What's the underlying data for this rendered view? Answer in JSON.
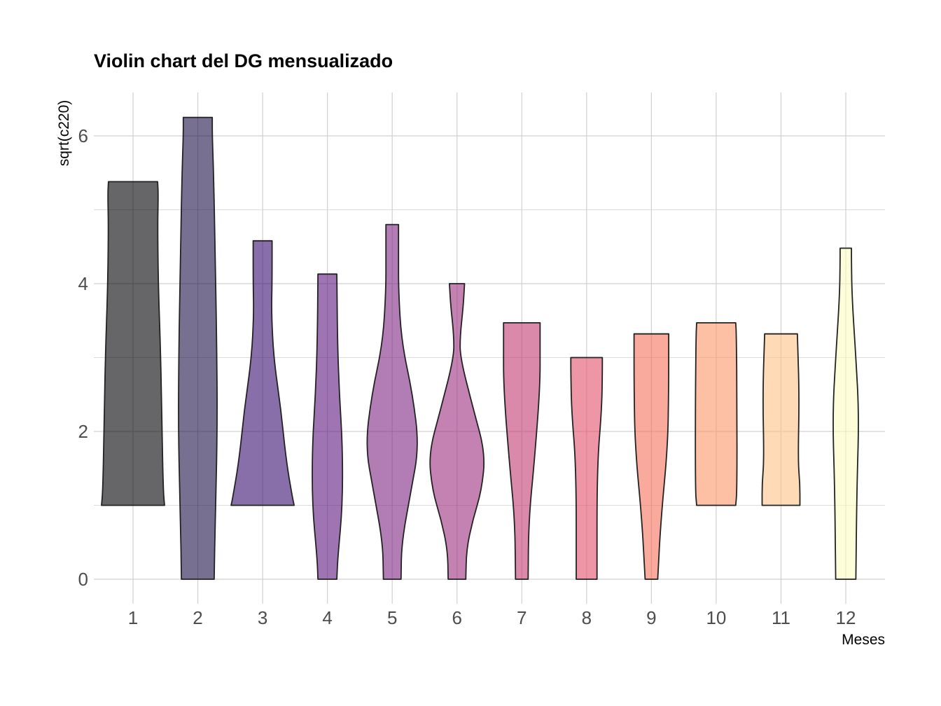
{
  "chart_data": {
    "type": "violin",
    "title": "Violin chart del DG mensualizado",
    "xlabel": "Meses",
    "ylabel": "sqrt(c220)",
    "ylim": [
      -0.35,
      6.55
    ],
    "yticks": [
      0,
      2,
      4,
      6
    ],
    "grid": true,
    "categories": [
      "1",
      "2",
      "3",
      "4",
      "5",
      "6",
      "7",
      "8",
      "9",
      "10",
      "11",
      "12"
    ],
    "series": [
      {
        "category": "1",
        "min": 1.0,
        "max": 5.38,
        "color": "#000004",
        "profile": [
          [
            1.0,
            1.0
          ],
          [
            1.2,
            0.96
          ],
          [
            2.0,
            0.92
          ],
          [
            3.0,
            0.88
          ],
          [
            4.0,
            0.8
          ],
          [
            4.8,
            0.78
          ],
          [
            5.2,
            0.8
          ],
          [
            5.38,
            0.78
          ]
        ]
      },
      {
        "category": "2",
        "min": 0.0,
        "max": 6.25,
        "color": "#1d1147",
        "profile": [
          [
            0.0,
            0.52
          ],
          [
            0.8,
            0.55
          ],
          [
            2.0,
            0.62
          ],
          [
            3.2,
            0.6
          ],
          [
            4.4,
            0.55
          ],
          [
            5.5,
            0.5
          ],
          [
            6.0,
            0.46
          ],
          [
            6.25,
            0.46
          ]
        ]
      },
      {
        "category": "3",
        "min": 1.0,
        "max": 4.58,
        "color": "#3b0f70",
        "profile": [
          [
            1.0,
            1.0
          ],
          [
            1.1,
            0.95
          ],
          [
            1.6,
            0.75
          ],
          [
            2.3,
            0.58
          ],
          [
            3.0,
            0.35
          ],
          [
            3.6,
            0.28
          ],
          [
            4.0,
            0.3
          ],
          [
            4.58,
            0.3
          ]
        ]
      },
      {
        "category": "4",
        "min": 0.0,
        "max": 4.13,
        "color": "#5f187f",
        "profile": [
          [
            0.0,
            0.3
          ],
          [
            0.3,
            0.33
          ],
          [
            1.0,
            0.48
          ],
          [
            1.8,
            0.48
          ],
          [
            2.5,
            0.38
          ],
          [
            3.2,
            0.32
          ],
          [
            4.13,
            0.3
          ]
        ]
      },
      {
        "category": "5",
        "min": 0.0,
        "max": 4.8,
        "color": "#7e2482",
        "profile": [
          [
            0.0,
            0.28
          ],
          [
            0.5,
            0.3
          ],
          [
            1.2,
            0.6
          ],
          [
            1.8,
            0.85
          ],
          [
            2.5,
            0.65
          ],
          [
            3.2,
            0.3
          ],
          [
            3.9,
            0.2
          ],
          [
            4.4,
            0.2
          ],
          [
            4.8,
            0.2
          ]
        ]
      },
      {
        "category": "6",
        "min": 0.0,
        "max": 4.0,
        "color": "#9c2e7f",
        "profile": [
          [
            0.0,
            0.28
          ],
          [
            0.4,
            0.3
          ],
          [
            0.8,
            0.5
          ],
          [
            1.2,
            0.78
          ],
          [
            1.7,
            0.9
          ],
          [
            2.3,
            0.52
          ],
          [
            3.0,
            0.1
          ],
          [
            3.3,
            0.1
          ],
          [
            3.7,
            0.2
          ],
          [
            4.0,
            0.24
          ]
        ]
      },
      {
        "category": "7",
        "min": 0.0,
        "max": 3.47,
        "color": "#c13a73",
        "profile": [
          [
            0.0,
            0.2
          ],
          [
            0.8,
            0.22
          ],
          [
            1.6,
            0.4
          ],
          [
            2.6,
            0.58
          ],
          [
            3.2,
            0.58
          ],
          [
            3.47,
            0.58
          ]
        ]
      },
      {
        "category": "8",
        "min": 0.0,
        "max": 3.0,
        "color": "#e34f6b",
        "profile": [
          [
            0.0,
            0.33
          ],
          [
            1.5,
            0.33
          ],
          [
            2.3,
            0.48
          ],
          [
            2.8,
            0.5
          ],
          [
            3.0,
            0.5
          ]
        ]
      },
      {
        "category": "9",
        "min": 0.0,
        "max": 3.32,
        "color": "#f7705c",
        "profile": [
          [
            0.0,
            0.2
          ],
          [
            0.8,
            0.3
          ],
          [
            1.8,
            0.52
          ],
          [
            2.6,
            0.55
          ],
          [
            3.32,
            0.55
          ]
        ]
      },
      {
        "category": "10",
        "min": 1.0,
        "max": 3.47,
        "color": "#fd9668",
        "profile": [
          [
            1.0,
            0.62
          ],
          [
            1.2,
            0.66
          ],
          [
            2.4,
            0.66
          ],
          [
            3.3,
            0.64
          ],
          [
            3.47,
            0.62
          ]
        ]
      },
      {
        "category": "11",
        "min": 1.0,
        "max": 3.32,
        "color": "#fec287",
        "profile": [
          [
            1.0,
            0.6
          ],
          [
            1.3,
            0.6
          ],
          [
            1.6,
            0.54
          ],
          [
            2.5,
            0.58
          ],
          [
            3.3,
            0.52
          ],
          [
            3.32,
            0.52
          ]
        ]
      },
      {
        "category": "12",
        "min": 0.0,
        "max": 4.48,
        "color": "#fcfdbf",
        "profile": [
          [
            0.0,
            0.32
          ],
          [
            1.2,
            0.35
          ],
          [
            2.2,
            0.42
          ],
          [
            3.0,
            0.32
          ],
          [
            3.8,
            0.2
          ],
          [
            4.3,
            0.18
          ],
          [
            4.48,
            0.18
          ]
        ]
      }
    ],
    "outline_color": "#222222",
    "fill_opacity": 0.6
  }
}
